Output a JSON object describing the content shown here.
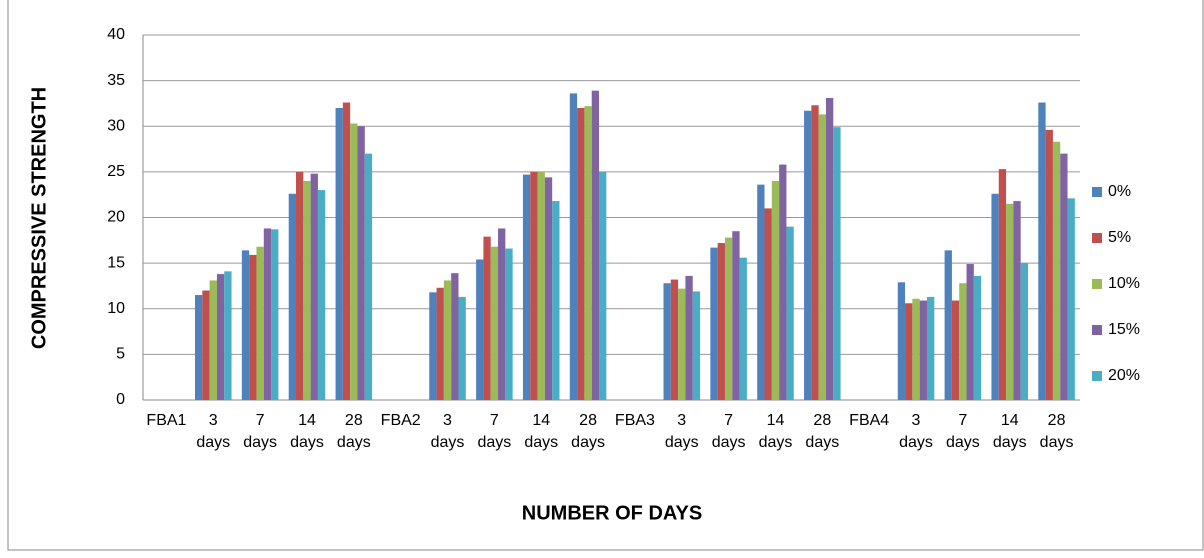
{
  "chart_data": {
    "type": "bar",
    "x_label": "NUMBER OF DAYS",
    "y_label": "COMPRESSIVE  STRENGTH",
    "categories": [
      "FBA1",
      "3 days",
      "7 days",
      "14 days",
      "28 days",
      "FBA2",
      "3 days",
      "7 days",
      "14 days",
      "28 days",
      "FBA3",
      "3 days",
      "7 days",
      "14 days",
      "28 days",
      "FBA4",
      "3 days",
      "7 days",
      "14 days",
      "28 days"
    ],
    "series": [
      {
        "name": "0%",
        "color": "#4f81bd",
        "values": [
          null,
          11.5,
          16.4,
          22.6,
          32,
          null,
          11.8,
          15.4,
          24.7,
          33.6,
          null,
          12.8,
          16.7,
          23.6,
          31.7,
          null,
          12.9,
          16.4,
          22.6,
          32.6
        ]
      },
      {
        "name": "5%",
        "color": "#c0504d",
        "values": [
          null,
          12,
          15.9,
          25,
          32.6,
          null,
          12.3,
          17.9,
          25,
          32,
          null,
          13.2,
          17.2,
          21,
          32.3,
          null,
          10.6,
          10.9,
          25.3,
          29.6
        ]
      },
      {
        "name": "10%",
        "color": "#9bbb59",
        "values": [
          null,
          13.1,
          16.8,
          24,
          30.3,
          null,
          13.1,
          16.8,
          25,
          32.2,
          null,
          12.2,
          17.8,
          24,
          31.3,
          null,
          11.1,
          12.8,
          21.5,
          28.3
        ]
      },
      {
        "name": "15%",
        "color": "#8064a2",
        "values": [
          null,
          13.8,
          18.8,
          24.8,
          30,
          null,
          13.9,
          18.8,
          24.4,
          33.9,
          null,
          13.6,
          18.5,
          25.8,
          33.1,
          null,
          10.9,
          14.9,
          21.8,
          27
        ]
      },
      {
        "name": "20%",
        "color": "#4bacc6",
        "values": [
          null,
          14.1,
          18.7,
          23,
          27,
          null,
          11.3,
          16.6,
          21.8,
          25,
          null,
          11.9,
          15.6,
          19,
          29.9,
          null,
          11.3,
          13.6,
          15,
          22.1
        ]
      }
    ],
    "ylim": [
      0,
      40
    ],
    "yticks": [
      0,
      5,
      10,
      15,
      20,
      25,
      30,
      35,
      40
    ],
    "grid": true,
    "legend": "right"
  }
}
